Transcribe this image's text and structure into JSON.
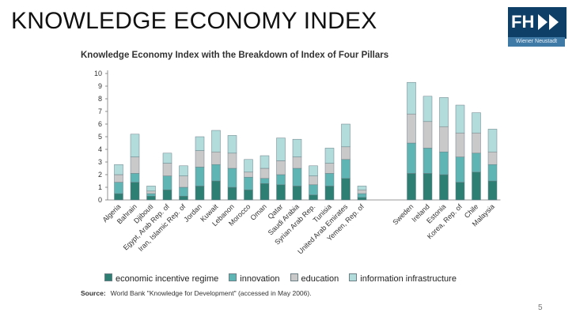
{
  "slide": {
    "title": "KNOWLEDGE ECONOMY INDEX",
    "page_number": "5",
    "logo": {
      "text": "FH",
      "subtitle": "Wiener Neustadt",
      "icon": "fast-forward-icon"
    }
  },
  "source": {
    "label": "Source:",
    "text": "World Bank \"Knowledge for Development\" (accessed in May 2006)."
  },
  "colors": {
    "economic_incentive_regime": "#2e7f73",
    "innovation": "#5fb5b4",
    "education": "#c9c9c9",
    "information_infrastructure": "#b2dcdc"
  },
  "chart_data": {
    "type": "bar",
    "stacked": true,
    "title": "Knowledge Economy Index with the Breakdown of Index of Four Pillars",
    "xlabel": "",
    "ylabel": "",
    "ylim": [
      0,
      10
    ],
    "yticks": [
      0,
      1,
      2,
      3,
      4,
      5,
      6,
      7,
      8,
      9,
      10
    ],
    "grid": false,
    "legend_position": "bottom",
    "categories": [
      "Algeria",
      "Bahrain",
      "Djibouti",
      "Egypt, Arab Rep. of",
      "Iran, Islamic Rep. of",
      "Jordan",
      "Kuwait",
      "Lebanon",
      "Morocco",
      "Oman",
      "Qatar",
      "Saudi Arabia",
      "Syrian Arab Rep.",
      "Tunisia",
      "United Arab Emirates",
      "Yemen, Rep. of",
      "Sweden",
      "Ireland",
      "Estonia",
      "Korea, Rep. of",
      "Chile",
      "Malaysia"
    ],
    "group_break_after": "Yemen, Rep. of",
    "series": [
      {
        "name": "economic incentive regime",
        "color": "#2e7f73",
        "values": [
          0.5,
          1.4,
          0.3,
          0.8,
          0.3,
          1.1,
          1.5,
          1.0,
          0.8,
          1.3,
          1.2,
          1.1,
          0.4,
          1.1,
          1.7,
          0.2,
          2.1,
          2.1,
          2.0,
          1.4,
          2.2,
          1.5
        ]
      },
      {
        "name": "innovation",
        "color": "#5fb5b4",
        "values": [
          0.9,
          0.7,
          0.2,
          1.1,
          0.7,
          1.5,
          1.3,
          1.5,
          1.0,
          0.4,
          0.8,
          1.4,
          0.8,
          1.0,
          1.5,
          0.3,
          2.4,
          2.0,
          1.8,
          2.0,
          1.5,
          1.3
        ]
      },
      {
        "name": "education",
        "color": "#c9c9c9",
        "values": [
          0.6,
          1.3,
          0.2,
          1.0,
          0.9,
          1.3,
          1.0,
          1.2,
          0.4,
          0.8,
          1.1,
          0.9,
          0.7,
          0.8,
          1.0,
          0.3,
          2.3,
          2.1,
          2.0,
          1.9,
          1.6,
          1.0
        ]
      },
      {
        "name": "information infrastructure",
        "color": "#b2dcdc",
        "values": [
          0.8,
          1.8,
          0.4,
          0.8,
          0.8,
          1.1,
          1.7,
          1.4,
          1.0,
          1.0,
          1.8,
          1.4,
          0.8,
          1.2,
          1.8,
          0.3,
          2.5,
          2.0,
          2.3,
          2.2,
          1.6,
          1.8
        ]
      }
    ]
  }
}
